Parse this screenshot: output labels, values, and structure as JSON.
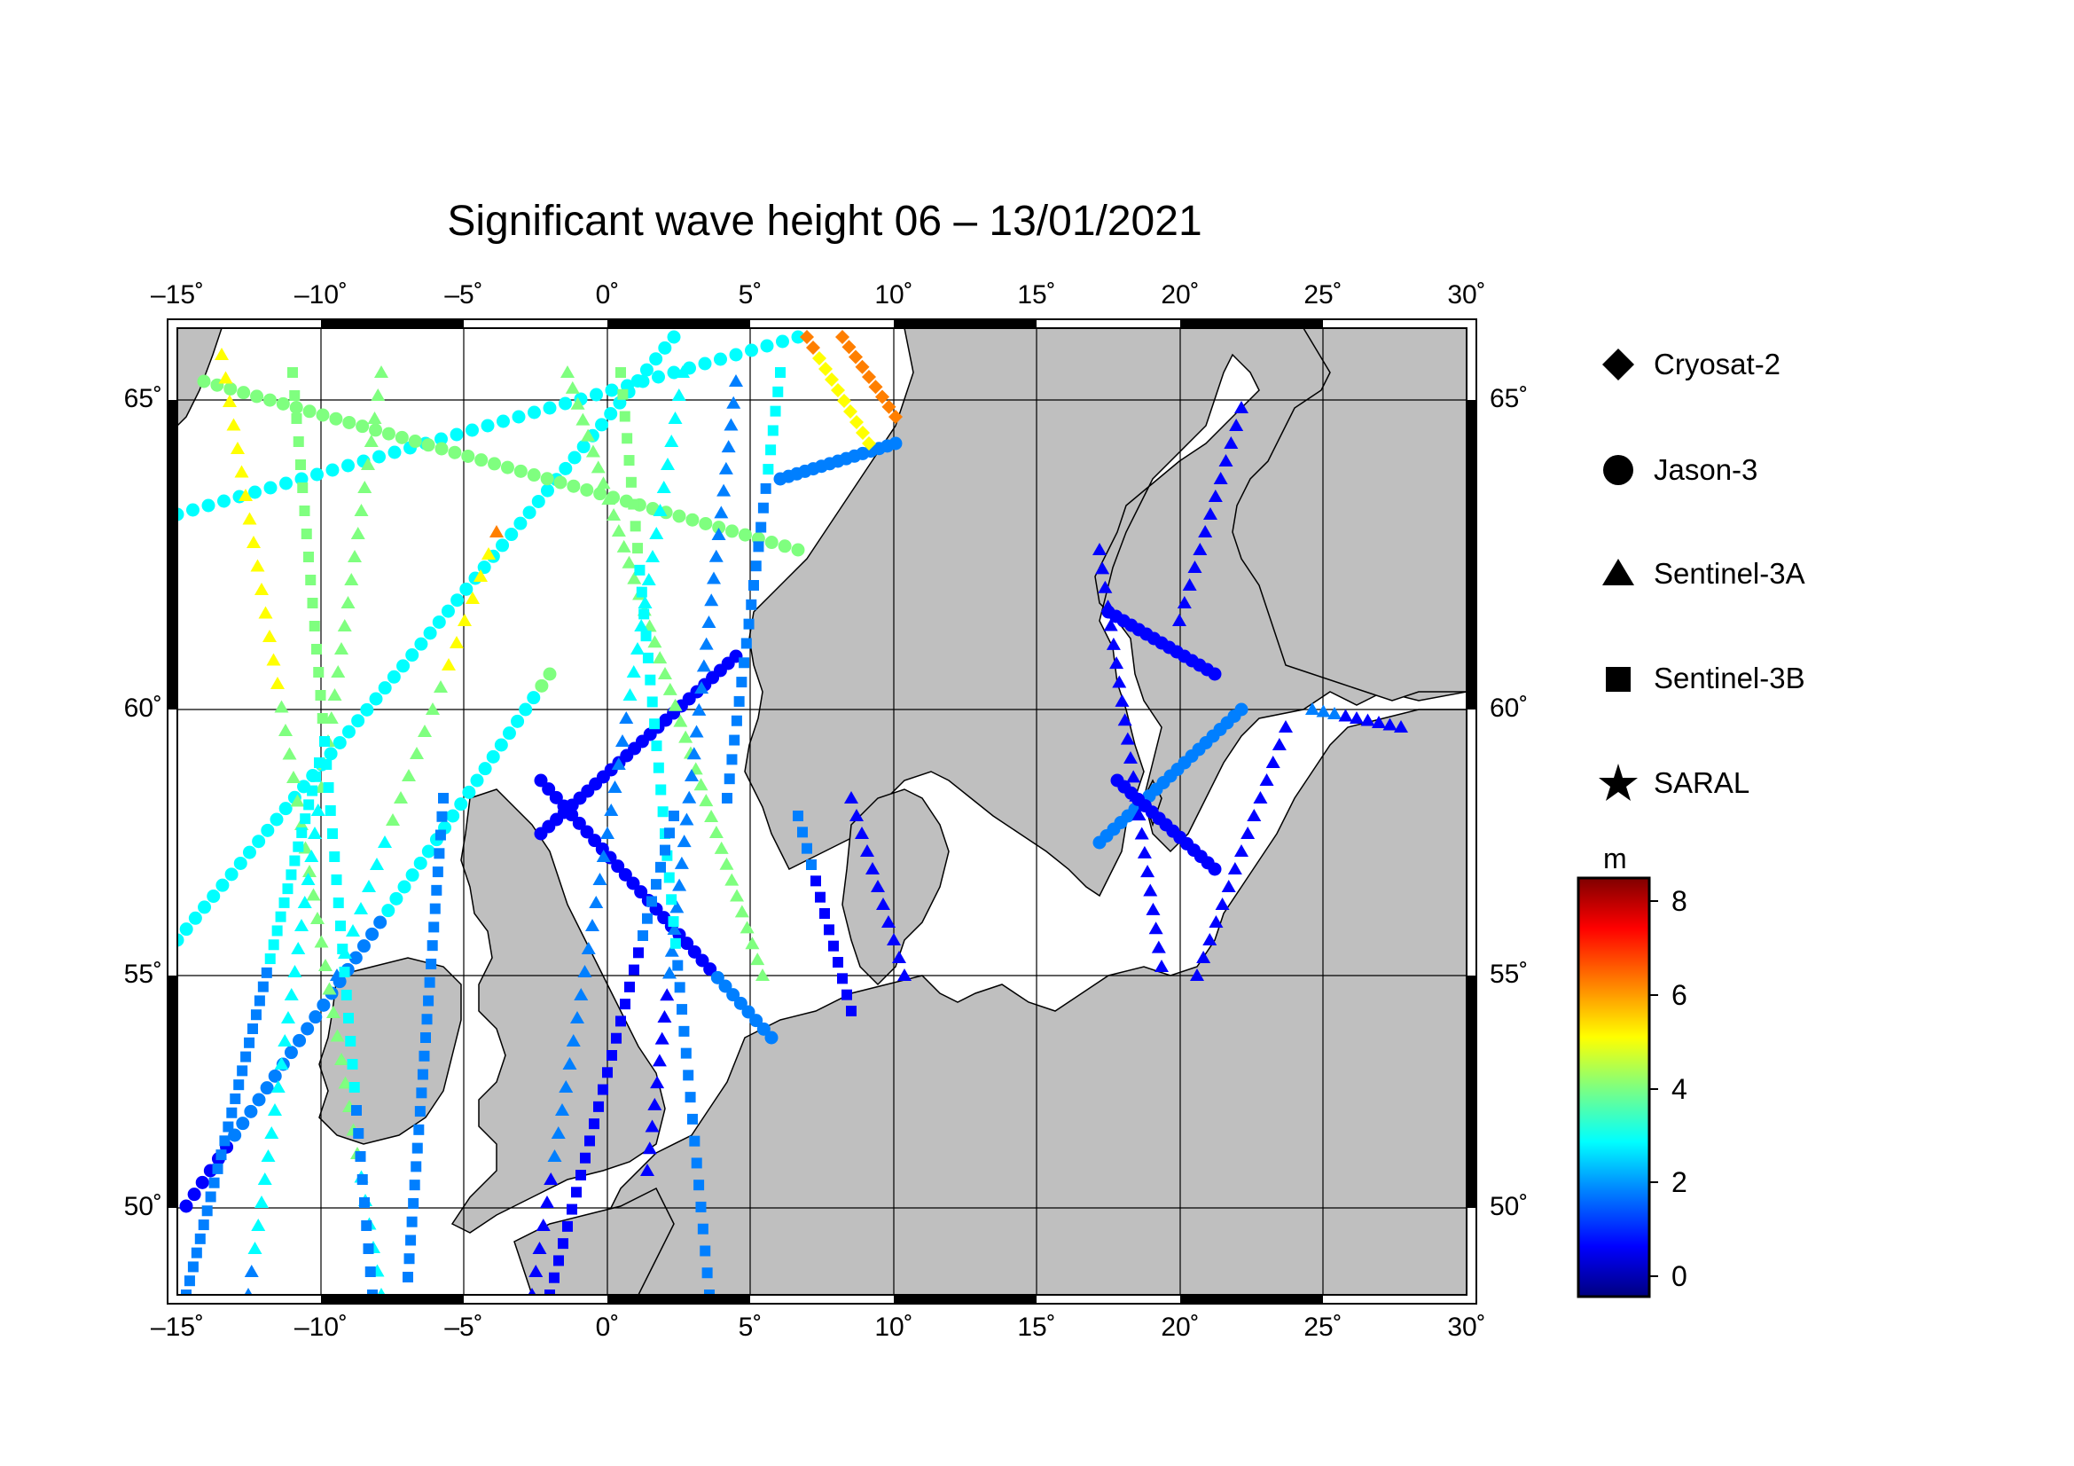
{
  "title": "Significant wave height 06 – 13/01/2021",
  "axes": {
    "lon_ticks": [
      "–15˚",
      "–10˚",
      "–5˚",
      "0˚",
      "5˚",
      "10˚",
      "15˚",
      "20˚",
      "25˚",
      "30˚"
    ],
    "lat_ticks": [
      "65˚",
      "60˚",
      "55˚",
      "50˚"
    ],
    "lon_range": [
      -15.5,
      30.5
    ],
    "lat_range": [
      48.4,
      66.4
    ]
  },
  "legend": {
    "items": [
      {
        "name": "Cryosat-2",
        "symbol": "diamond"
      },
      {
        "name": "Jason-3",
        "symbol": "circle"
      },
      {
        "name": "Sentinel-3A",
        "symbol": "triangle"
      },
      {
        "name": "Sentinel-3B",
        "symbol": "square"
      },
      {
        "name": "SARAL",
        "symbol": "star"
      }
    ]
  },
  "colorbar": {
    "unit": "m",
    "ticks": [
      "8",
      "6",
      "4",
      "2",
      "0"
    ],
    "range": [
      -0.5,
      8.5
    ],
    "colors": [
      "#00007f",
      "#0000ff",
      "#007fff",
      "#00ffff",
      "#7fff7f",
      "#ffff00",
      "#ff7f00",
      "#ff0000",
      "#7f0000"
    ]
  },
  "land_color": "#bfbfbf"
}
